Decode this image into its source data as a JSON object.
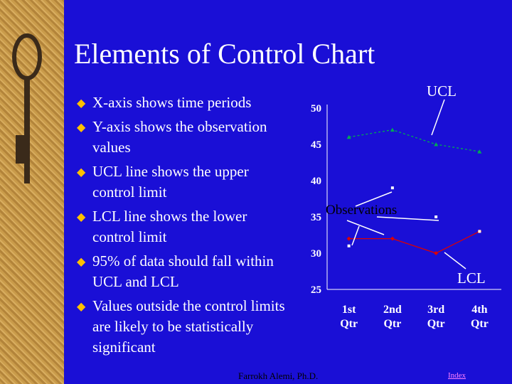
{
  "title": "Elements of Control Chart",
  "bullets": [
    "X-axis shows time periods",
    "Y-axis shows the observation values",
    "UCL line shows the upper control limit",
    "LCL line shows the lower control limit",
    "95% of data should fall within UCL and LCL",
    "Values outside the control limits are likely to be statistically significant"
  ],
  "bullet_icon": "diamond-bullet-icon",
  "footer": "Farrokh Alemi, Ph.D.",
  "index_link": "Index",
  "colors": {
    "background": "#1a0fd6",
    "text": "#ffffff",
    "bullet": "#ffc000",
    "ucl": "#00aa55",
    "lcl": "#dd0000",
    "obs": "#ffffff"
  },
  "chart_data": {
    "type": "line",
    "categories": [
      "1st Qtr",
      "2nd Qtr",
      "3rd Qtr",
      "4th Qtr"
    ],
    "ylim": [
      25,
      50
    ],
    "yticks": [
      "50",
      "45",
      "40",
      "35",
      "30",
      "25"
    ],
    "series": [
      {
        "name": "UCL",
        "values": [
          46,
          47,
          45,
          44
        ]
      },
      {
        "name": "LCL",
        "values": [
          32,
          32,
          30,
          33
        ]
      },
      {
        "name": "Observations",
        "values": [
          31,
          39,
          35,
          33
        ]
      }
    ],
    "annotations": {
      "ucl": "UCL",
      "lcl": "LCL",
      "observations": "Observations"
    }
  }
}
